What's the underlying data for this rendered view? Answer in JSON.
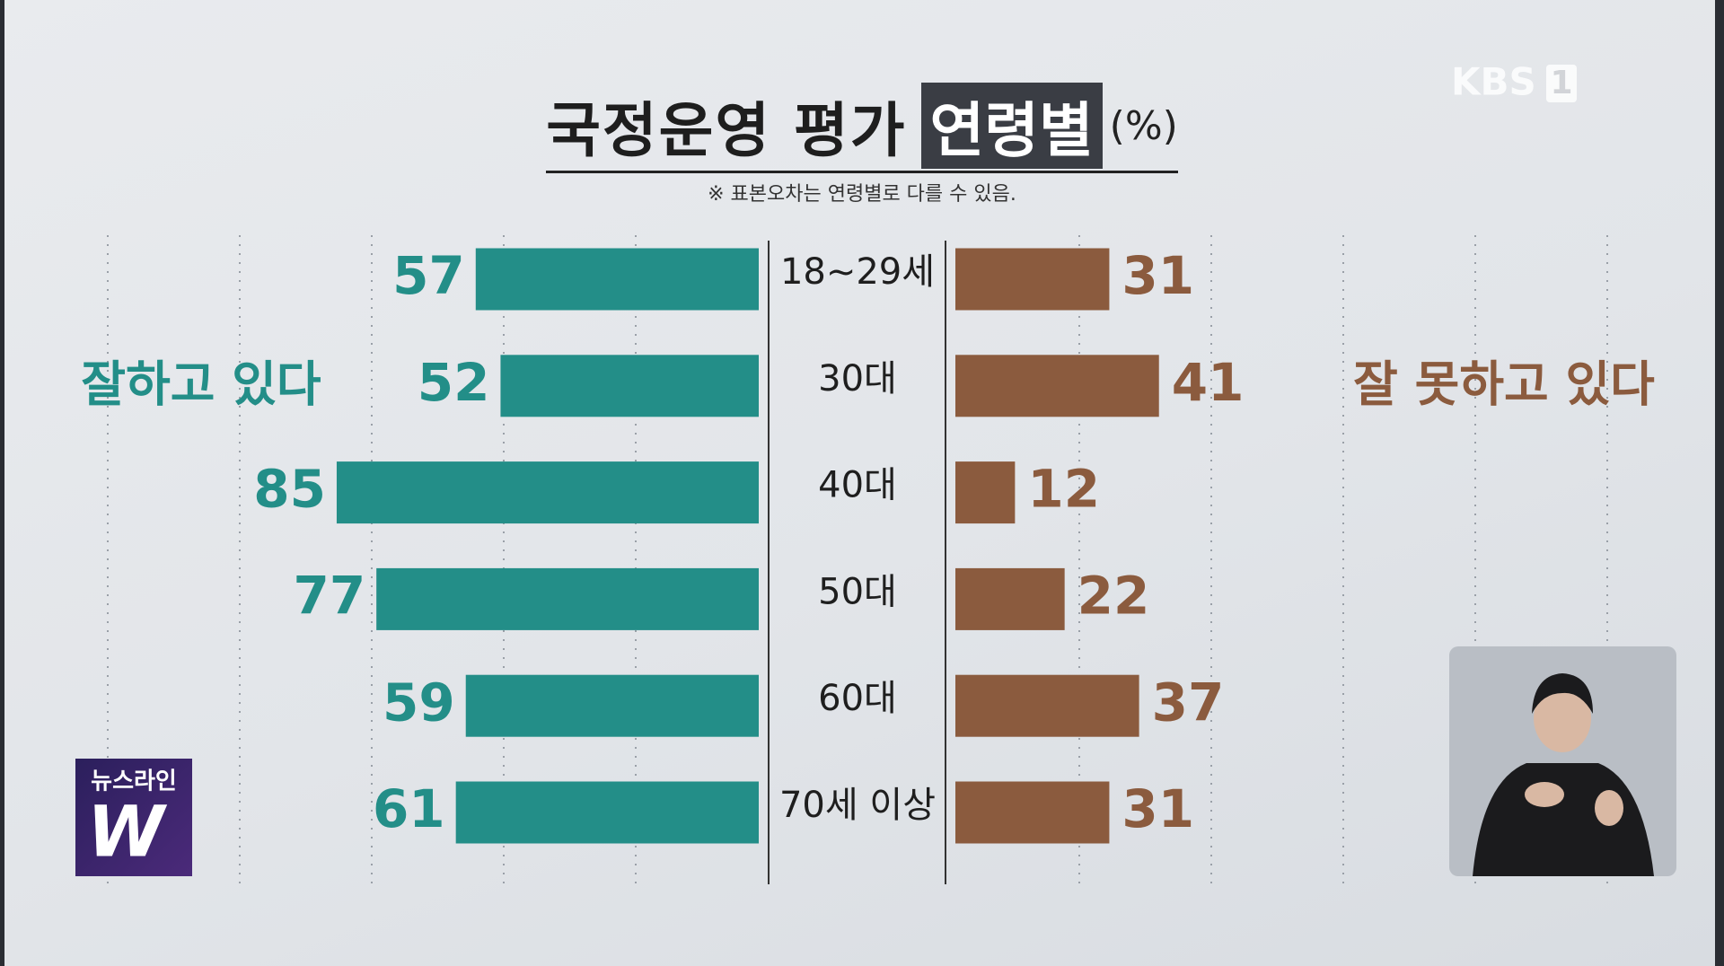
{
  "chart_data": {
    "type": "butterfly",
    "title": "국정운영 평가",
    "title_highlight": "연령별",
    "title_unit": "(%)",
    "subtitle": "※ 표본오차는 연령별로 다를 수 있음.",
    "categories": [
      "18~29세",
      "30대",
      "40대",
      "50대",
      "60대",
      "70세 이상"
    ],
    "series": [
      {
        "name": "잘하고 있다",
        "color": "#238e88",
        "values": [
          57,
          52,
          85,
          77,
          59,
          61
        ]
      },
      {
        "name": "잘 못하고 있다",
        "color": "#8b5b3e",
        "values": [
          31,
          41,
          12,
          22,
          37,
          31
        ]
      }
    ],
    "xlim": [
      0,
      100
    ]
  },
  "broadcaster": "KBS",
  "channel": "1",
  "program": "뉴스라인",
  "program_mark": "W"
}
